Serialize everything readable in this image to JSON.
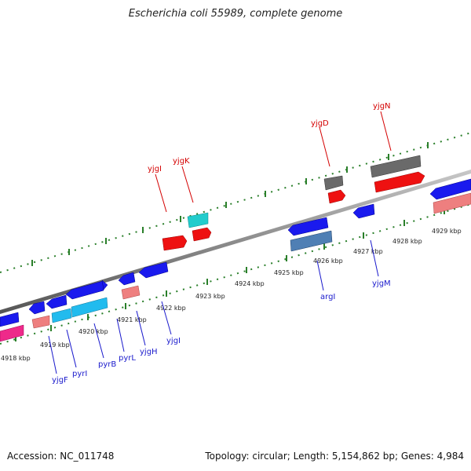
{
  "title": "Escherichia coli 55989, complete genome",
  "footer": {
    "accession": "Accession: NC_011748",
    "summary": "Topology: circular; Length: 5,154,862 bp; Genes: 4,984"
  },
  "scale": {
    "labels": [
      "4918 kbp",
      "4919 kbp",
      "4920 kbp",
      "4921 kbp",
      "4922 kbp",
      "4923 kbp",
      "4924 kbp",
      "4925 kbp",
      "4926 kbp",
      "4927 kbp",
      "4928 kbp",
      "4929 kbp"
    ]
  },
  "colors": {
    "backbone": "#8c8c8c",
    "tick": "#2a7f2a",
    "label_forward": "#d40000",
    "label_reverse": "#1a1acc",
    "blue": "#1a1aee",
    "red": "#ee1111",
    "cyan": "#22cccc",
    "skyblue": "#22bbee",
    "pink": "#ee2a8a",
    "salmon": "#ee7f7f",
    "steel": "#4f7fb4",
    "gray": "#6a6a6a"
  },
  "gene_labels": {
    "forward": [
      "yjgI",
      "yjgK",
      "yjgD",
      "yjgN"
    ],
    "reverse": [
      "yjgF",
      "pyrI",
      "pyrB",
      "pyrL",
      "yjgH",
      "yjgI",
      "argI",
      "yjgM"
    ]
  }
}
